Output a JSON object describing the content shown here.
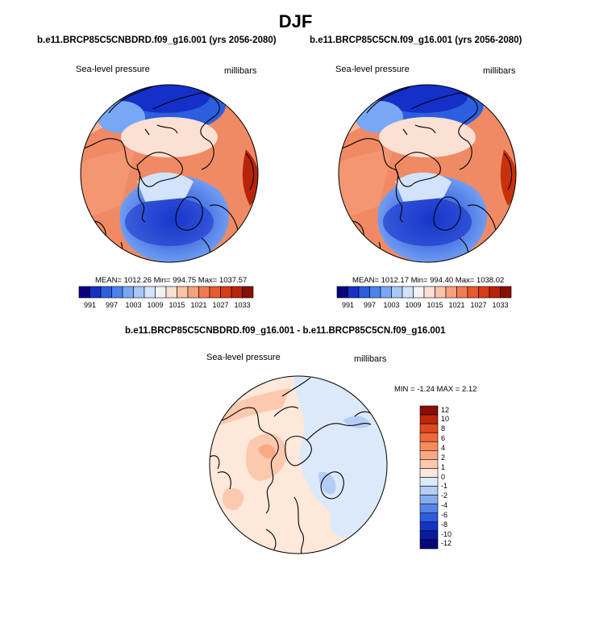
{
  "page_title": "DJF",
  "panels": [
    {
      "title": "b.e11.BRCP85C5CNBDRD.f09_g16.001 (yrs 2056-2080)",
      "left_label": "Sea-level pressure",
      "right_label": "millibars",
      "stats": "MEAN= 1012.26   Min= 994.75   Max= 1037.57"
    },
    {
      "title": "b.e11.BRCP85C5CN.f09_g16.001 (yrs 2056-2080)",
      "left_label": "Sea-level pressure",
      "right_label": "millibars",
      "stats": "MEAN= 1012.17   Min= 994.40   Max= 1038.02"
    }
  ],
  "colorbar_top": {
    "tick_labels": [
      "991",
      "997",
      "1003",
      "1009",
      "1015",
      "1021",
      "1027",
      "1033"
    ],
    "colors": [
      "#08007e",
      "#1530c8",
      "#2c5fdf",
      "#4c82ee",
      "#78a8f5",
      "#a8c8f7",
      "#d2e3fb",
      "#f2f2f2",
      "#fbe0d4",
      "#f9c4a8",
      "#f7a07c",
      "#f27c52",
      "#e85a30",
      "#d83c14",
      "#b82408",
      "#8a0e02"
    ]
  },
  "diff_panel": {
    "title": "b.e11.BRCP85C5CNBDRD.f09_g16.001 - b.e11.BRCP85C5CN.f09_g16.001",
    "left_label": "Sea-level pressure",
    "right_label": "millibars",
    "stats": "MIN =  -1.24 MAX =  2.12"
  },
  "colorbar_diff": {
    "tick_labels": [
      "12",
      "10",
      "8",
      "6",
      "4",
      "2",
      "1",
      "0",
      "-1",
      "-2",
      "-4",
      "-6",
      "-8",
      "-10",
      "-12"
    ],
    "colors": [
      "#8a0e02",
      "#c0280a",
      "#e04a1c",
      "#f26838",
      "#f88a5a",
      "#faa984",
      "#fcc9ae",
      "#fde8da",
      "#dce9fb",
      "#b4cdf6",
      "#86acf0",
      "#5884ea",
      "#2c5ce0",
      "#1434c0",
      "#0a1aa0",
      "#06087a"
    ]
  },
  "colors": {
    "background": "#ffffff",
    "land_outline": "#000000"
  }
}
